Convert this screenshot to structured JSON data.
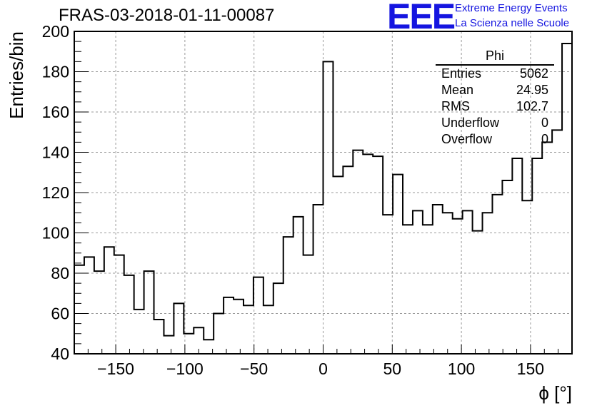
{
  "title": "FRAS-03-2018-01-11-00087",
  "logo": {
    "text": "EEE",
    "line1": "Extreme Energy Events",
    "line2": "La Scienza nelle Scuole",
    "color": "#1515e0"
  },
  "stats": {
    "title": "Phi",
    "rows": [
      {
        "label": "Entries",
        "value": "5062"
      },
      {
        "label": "Mean",
        "value": "24.95"
      },
      {
        "label": "RMS",
        "value": "102.7"
      },
      {
        "label": "Underflow",
        "value": "0"
      },
      {
        "label": "Overflow",
        "value": "0"
      }
    ]
  },
  "chart_data": {
    "type": "bar",
    "style": "step-histogram",
    "xlabel": "ϕ [°]",
    "ylabel": "Entries/bin",
    "xlim": [
      -180,
      180
    ],
    "ylim": [
      40,
      200
    ],
    "bin_width": 7.2,
    "x_ticks": [
      -150,
      -100,
      -50,
      0,
      50,
      100,
      150
    ],
    "x_tick_labels": [
      "−150",
      "−100",
      "−50",
      "0",
      "50",
      "100",
      "150"
    ],
    "y_ticks": [
      40,
      60,
      80,
      100,
      120,
      140,
      160,
      180,
      200
    ],
    "grid": true,
    "values": [
      84,
      88,
      81,
      93,
      89,
      79,
      62,
      81,
      57,
      49,
      65,
      50,
      53,
      47,
      60,
      68,
      67,
      64,
      78,
      64,
      75,
      98,
      108,
      89,
      114,
      185,
      128,
      133,
      141,
      139,
      138,
      109,
      129,
      104,
      111,
      104,
      114,
      110,
      107,
      111,
      101,
      110,
      119,
      126,
      137,
      116,
      137,
      145,
      151,
      194
    ]
  }
}
